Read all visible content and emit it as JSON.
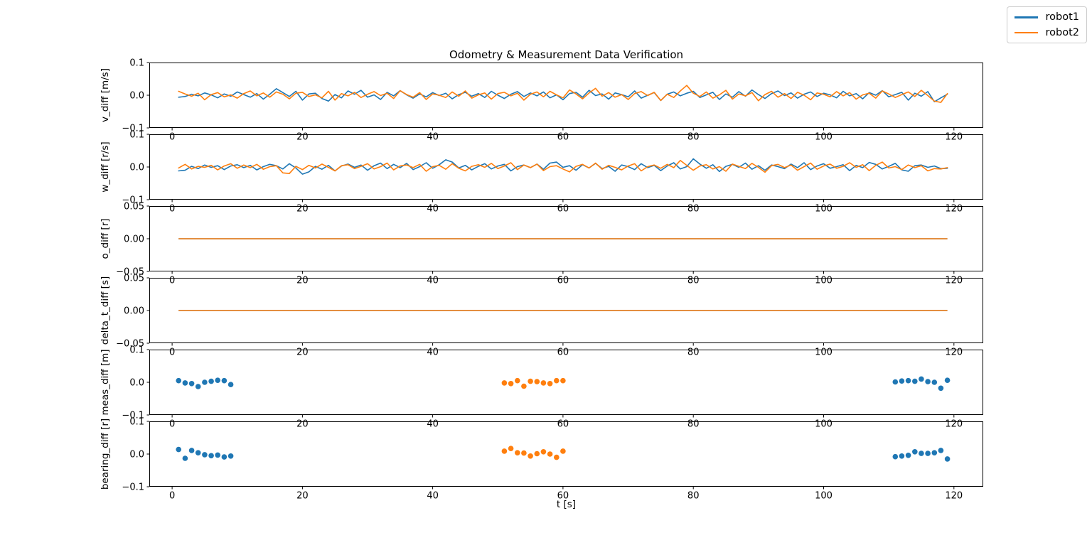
{
  "figure": {
    "title": "Odometry & Measurement Data Verification",
    "xlabel": "t [s]",
    "background": "#ffffff",
    "legend": {
      "position": "top-right",
      "items": [
        {
          "label": "robot1",
          "color": "#1f77b4"
        },
        {
          "label": "robot2",
          "color": "#ff7f0e"
        }
      ]
    }
  },
  "chart_data": [
    {
      "id": "v-diff",
      "type": "line",
      "ylabel": "v_diff [m/s]",
      "xlim": [
        -3.5,
        124.5
      ],
      "ylim": [
        -0.1,
        0.1
      ],
      "xticks": [
        0,
        20,
        40,
        60,
        80,
        100,
        120
      ],
      "yticks": [
        0.1,
        0.0,
        -0.1
      ],
      "ytick_labels": [
        "0.1",
        "0.0",
        "−0.1"
      ],
      "series": [
        {
          "name": "robot1",
          "color": "#1f77b4",
          "x_start": 1,
          "x_step": 1,
          "values": [
            -0.006,
            -0.004,
            0.003,
            -0.002,
            0.007,
            0.001,
            -0.008,
            0.004,
            -0.003,
            0.01,
            0.002,
            -0.006,
            0.005,
            -0.012,
            0.003,
            0.02,
            0.008,
            -0.004,
            0.012,
            -0.015,
            0.004,
            0.006,
            -0.01,
            -0.018,
            0.002,
            -0.008,
            0.013,
            0.003,
            0.015,
            -0.006,
            0.001,
            -0.013,
            0.009,
            -0.002,
            0.014,
            0.001,
            -0.009,
            0.004,
            -0.005,
            0.008,
            -0.001,
            0.006,
            -0.011,
            0.002,
            0.009,
            -0.003,
            0.005,
            -0.007,
            0.012,
            0.0,
            -0.01,
            0.003,
            0.011,
            -0.004,
            0.007,
            -0.002,
            0.01,
            -0.008,
            0.001,
            -0.014,
            0.005,
            0.009,
            -0.006,
            0.015,
            -0.001,
            0.004,
            -0.012,
            0.007,
            0.002,
            -0.005,
            0.013,
            -0.009,
            0.0,
            0.008,
            -0.016,
            0.003,
            0.01,
            -0.002,
            0.006,
            0.012,
            -0.007,
            0.001,
            0.009,
            -0.013,
            0.004,
            -0.006,
            0.011,
            -0.003,
            0.016,
            0.002,
            -0.01,
            0.005,
            0.013,
            -0.001,
            0.007,
            -0.009,
            0.003,
            0.01,
            -0.004,
            0.006,
            0.001,
            -0.008,
            0.012,
            -0.002,
            0.005,
            -0.011,
            0.008,
            0.0,
            0.014,
            -0.005,
            0.002,
            0.009,
            -0.015,
            0.006,
            -0.003,
            0.011,
            -0.02,
            -0.008,
            0.003
          ]
        },
        {
          "name": "robot2",
          "color": "#ff7f0e",
          "x_start": 1,
          "x_step": 1,
          "values": [
            0.012,
            0.004,
            -0.003,
            0.006,
            -0.014,
            0.002,
            0.008,
            -0.005,
            0.001,
            -0.009,
            0.005,
            0.013,
            -0.002,
            0.007,
            -0.006,
            0.01,
            0.003,
            -0.011,
            0.006,
            0.009,
            -0.004,
            0.001,
            -0.008,
            0.012,
            -0.015,
            0.005,
            -0.002,
            0.009,
            -0.007,
            0.003,
            0.011,
            -0.001,
            0.006,
            -0.01,
            0.014,
            0.002,
            -0.006,
            0.008,
            -0.013,
            0.004,
            0.0,
            -0.007,
            0.01,
            -0.003,
            0.013,
            -0.009,
            0.001,
            0.007,
            -0.012,
            0.005,
            0.009,
            -0.002,
            0.006,
            -0.015,
            0.003,
            0.01,
            -0.005,
            0.012,
            0.001,
            -0.008,
            0.016,
            0.004,
            -0.011,
            0.007,
            0.021,
            -0.003,
            0.008,
            -0.006,
            0.002,
            -0.013,
            0.005,
            0.011,
            -0.001,
            0.009,
            -0.016,
            0.003,
            -0.007,
            0.013,
            0.03,
            0.006,
            -0.004,
            0.01,
            -0.009,
            0.001,
            0.015,
            -0.012,
            0.004,
            -0.002,
            0.008,
            -0.017,
            0.002,
            0.012,
            -0.006,
            0.005,
            -0.01,
            0.009,
            0.0,
            -0.014,
            0.007,
            0.003,
            -0.005,
            0.011,
            -0.002,
            0.008,
            -0.012,
            0.001,
            0.006,
            -0.009,
            0.013,
            0.004,
            -0.007,
            0.002,
            0.01,
            -0.004,
            0.015,
            -0.001,
            -0.018,
            -0.022,
            0.005
          ]
        }
      ]
    },
    {
      "id": "w-diff",
      "type": "line",
      "ylabel": "w_diff [r/s]",
      "xlim": [
        -3.5,
        124.5
      ],
      "ylim": [
        -0.1,
        0.1
      ],
      "xticks": [
        0,
        20,
        40,
        60,
        80,
        100,
        120
      ],
      "yticks": [
        0.1,
        0.0,
        -0.1
      ],
      "ytick_labels": [
        "0.1",
        "0.0",
        "−0.1"
      ],
      "series": [
        {
          "name": "robot1",
          "color": "#1f77b4",
          "x_start": 1,
          "x_step": 1,
          "values": [
            -0.012,
            -0.01,
            0.002,
            -0.005,
            0.006,
            -0.001,
            0.004,
            -0.008,
            0.003,
            0.007,
            -0.002,
            0.005,
            -0.009,
            0.001,
            0.008,
            0.004,
            -0.006,
            0.01,
            -0.003,
            -0.022,
            -0.015,
            0.002,
            -0.007,
            0.005,
            -0.012,
            0.003,
            0.009,
            -0.001,
            0.006,
            -0.01,
            0.004,
            0.012,
            -0.005,
            0.008,
            -0.002,
            0.011,
            -0.008,
            0.001,
            0.013,
            -0.004,
            0.007,
            0.022,
            0.015,
            -0.003,
            0.005,
            -0.009,
            0.002,
            0.01,
            -0.006,
            0.003,
            0.008,
            -0.012,
            0.001,
            0.006,
            -0.002,
            0.009,
            -0.007,
            0.012,
            0.015,
            -0.001,
            0.004,
            -0.01,
            0.007,
            -0.003,
            0.011,
            -0.005,
            0.002,
            -0.013,
            0.006,
            0.001,
            -0.008,
            0.01,
            -0.002,
            0.005,
            -0.011,
            0.003,
            0.013,
            -0.006,
            0.001,
            0.025,
            0.009,
            -0.004,
            0.007,
            -0.014,
            0.002,
            0.008,
            -0.001,
            0.012,
            -0.007,
            0.004,
            -0.01,
            0.006,
            0.001,
            -0.005,
            0.009,
            -0.002,
            0.013,
            -0.008,
            0.003,
            0.01,
            -0.004,
            0.001,
            0.007,
            -0.011,
            0.005,
            -0.002,
            0.014,
            0.008,
            -0.006,
            0.002,
            0.011,
            -0.009,
            -0.013,
            0.004,
            0.006,
            -0.001,
            0.003,
            -0.005,
            -0.004
          ]
        },
        {
          "name": "robot2",
          "color": "#ff7f0e",
          "x_start": 1,
          "x_step": 1,
          "values": [
            -0.003,
            0.008,
            -0.006,
            0.002,
            -0.001,
            0.005,
            -0.009,
            0.003,
            0.01,
            -0.004,
            0.006,
            -0.002,
            0.008,
            -0.007,
            0.001,
            0.004,
            -0.018,
            -0.02,
            0.002,
            -0.008,
            0.005,
            -0.003,
            0.009,
            -0.001,
            -0.012,
            0.004,
            0.007,
            -0.005,
            0.002,
            0.01,
            -0.006,
            0.001,
            0.012,
            -0.009,
            0.003,
            0.006,
            -0.002,
            0.008,
            -0.013,
            0.001,
            0.005,
            -0.007,
            0.01,
            -0.004,
            -0.012,
            0.002,
            0.007,
            -0.001,
            0.011,
            -0.005,
            0.003,
            0.013,
            -0.008,
            0.006,
            -0.002,
            0.009,
            -0.011,
            0.001,
            0.004,
            -0.006,
            -0.015,
            0.002,
            0.008,
            -0.003,
            0.012,
            -0.007,
            0.005,
            -0.001,
            -0.009,
            0.003,
            0.01,
            -0.012,
            0.001,
            0.006,
            -0.004,
            0.008,
            -0.002,
            0.02,
            0.005,
            -0.01,
            0.003,
            0.007,
            -0.006,
            0.001,
            -0.013,
            0.009,
            0.002,
            -0.005,
            0.011,
            -0.001,
            -0.016,
            0.004,
            0.008,
            -0.002,
            0.006,
            -0.01,
            0.001,
            0.012,
            -0.007,
            0.003,
            0.009,
            -0.004,
            0.002,
            0.013,
            -0.001,
            0.007,
            -0.011,
            0.005,
            0.015,
            -0.003,
            0.001,
            -0.008,
            0.006,
            -0.002,
            0.004,
            -0.012,
            -0.005,
            -0.006,
            -0.002
          ]
        }
      ]
    },
    {
      "id": "o-diff",
      "type": "line",
      "ylabel": "o_diff [r]",
      "xlim": [
        -3.5,
        124.5
      ],
      "ylim": [
        -0.05,
        0.05
      ],
      "xticks": [
        0,
        20,
        40,
        60,
        80,
        100,
        120
      ],
      "yticks": [
        0.05,
        0.0,
        -0.05
      ],
      "ytick_labels": [
        "0.05",
        "0.00",
        "−0.05"
      ],
      "series": [
        {
          "name": "robot1",
          "color": "#1f77b4",
          "const": 0,
          "x_range": [
            1,
            119
          ]
        },
        {
          "name": "robot2",
          "color": "#ff7f0e",
          "const": 0,
          "x_range": [
            1,
            119
          ]
        }
      ]
    },
    {
      "id": "delta-t-diff",
      "type": "line",
      "ylabel": "delta_t_diff [s]",
      "xlim": [
        -3.5,
        124.5
      ],
      "ylim": [
        -0.05,
        0.05
      ],
      "xticks": [
        0,
        20,
        40,
        60,
        80,
        100,
        120
      ],
      "yticks": [
        0.05,
        0.0,
        -0.05
      ],
      "ytick_labels": [
        "0.05",
        "0.00",
        "−0.05"
      ],
      "series": [
        {
          "name": "robot1",
          "color": "#1f77b4",
          "const": 0,
          "x_range": [
            1,
            119
          ]
        },
        {
          "name": "robot2",
          "color": "#ff7f0e",
          "const": 0,
          "x_range": [
            1,
            119
          ]
        }
      ]
    },
    {
      "id": "meas-diff",
      "type": "scatter",
      "ylabel": "meas_diff [m]",
      "xlim": [
        -3.5,
        124.5
      ],
      "ylim": [
        -0.1,
        0.1
      ],
      "xticks": [
        0,
        20,
        40,
        60,
        80,
        100,
        120
      ],
      "yticks": [
        0.1,
        0.0,
        -0.1
      ],
      "ytick_labels": [
        "0.1",
        "0.0",
        "−0.1"
      ],
      "series": [
        {
          "name": "robot1",
          "color": "#1f77b4",
          "x": [
            1,
            2,
            3,
            4,
            5,
            6,
            7,
            8,
            9,
            111,
            112,
            113,
            114,
            115,
            116,
            117,
            118,
            119
          ],
          "y": [
            0.005,
            -0.002,
            -0.004,
            -0.013,
            0.0,
            0.003,
            0.006,
            0.005,
            -0.007,
            0.001,
            0.004,
            0.005,
            0.003,
            0.01,
            0.002,
            0.0,
            -0.018,
            0.006
          ]
        },
        {
          "name": "robot2",
          "color": "#ff7f0e",
          "x": [
            51,
            52,
            53,
            54,
            55,
            56,
            57,
            58,
            59,
            60
          ],
          "y": [
            -0.002,
            -0.004,
            0.005,
            -0.012,
            0.003,
            0.002,
            -0.002,
            -0.004,
            0.005,
            0.005
          ]
        }
      ]
    },
    {
      "id": "bearing-diff",
      "type": "scatter",
      "ylabel": "bearing_diff [r]",
      "xlim": [
        -3.5,
        124.5
      ],
      "ylim": [
        -0.1,
        0.1
      ],
      "xticks": [
        0,
        20,
        40,
        60,
        80,
        100,
        120
      ],
      "yticks": [
        0.1,
        0.0,
        -0.1
      ],
      "ytick_labels": [
        "0.1",
        "0.0",
        "−0.1"
      ],
      "series": [
        {
          "name": "robot1",
          "color": "#1f77b4",
          "x": [
            1,
            2,
            3,
            4,
            5,
            6,
            7,
            8,
            9,
            111,
            112,
            113,
            114,
            115,
            116,
            117,
            118,
            119
          ],
          "y": [
            0.014,
            -0.013,
            0.011,
            0.004,
            -0.002,
            -0.005,
            -0.003,
            -0.009,
            -0.006,
            -0.008,
            -0.006,
            -0.004,
            0.007,
            0.002,
            0.002,
            0.004,
            0.011,
            -0.015
          ]
        },
        {
          "name": "robot2",
          "color": "#ff7f0e",
          "x": [
            51,
            52,
            53,
            54,
            55,
            56,
            57,
            58,
            59,
            60
          ],
          "y": [
            0.009,
            0.017,
            0.004,
            0.003,
            -0.006,
            0.001,
            0.007,
            0.0,
            -0.01,
            0.009
          ]
        }
      ]
    }
  ]
}
